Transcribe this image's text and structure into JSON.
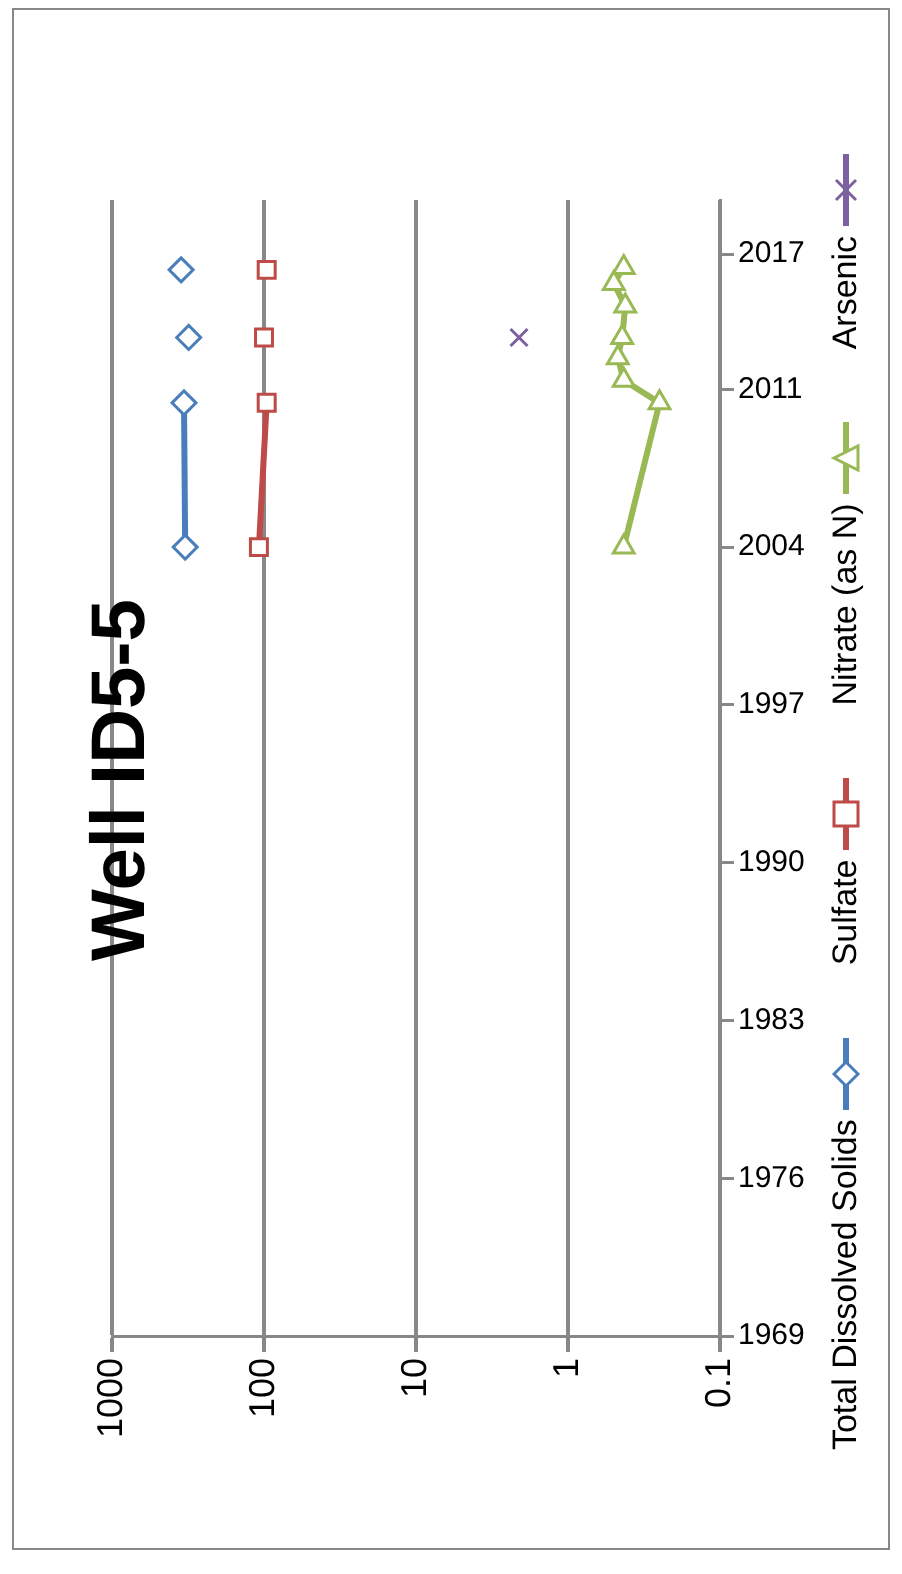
{
  "chart_data": {
    "type": "line",
    "title": "Well ID5-5",
    "xlim": [
      1000,
      0.1
    ],
    "xticks": [
      1000,
      100,
      10,
      1,
      0.1
    ],
    "ylim": [
      1969,
      2019.4
    ],
    "yticks": [
      1969,
      1976,
      1983,
      1990,
      1997,
      2004,
      2011,
      2017
    ],
    "log": "x",
    "grid": "x",
    "legend": "right",
    "series": [
      {
        "name": "Total Dissolved Solids",
        "color": "#4a7ebb",
        "marker": "diamond",
        "x": [
          330,
          336,
          null,
          313,
          null,
          351
        ],
        "values": [
          2004,
          2010.4,
          null,
          2013.3,
          null,
          2016.3
        ]
      },
      {
        "name": "Sulfate",
        "color": "#be4b48",
        "marker": "square",
        "x": [
          108,
          96,
          null,
          100,
          null,
          96
        ],
        "values": [
          2004,
          2010.4,
          null,
          2013.3,
          null,
          2016.3
        ]
      },
      {
        "name": "Nitrate (as N)",
        "color": "#98b954",
        "marker": "triangle",
        "x": [
          0.43,
          0.25,
          0.43,
          0.47,
          0.44,
          0.42,
          0.5,
          0.43
        ],
        "values": [
          2004,
          2010.4,
          2011.4,
          2012.4,
          2013.3,
          2014.7,
          2015.7,
          2016.4
        ]
      },
      {
        "name": "Arsenic",
        "color": "#7d60a0",
        "marker": "cross",
        "x": [
          2.1
        ],
        "values": [
          2013.3
        ]
      }
    ]
  }
}
